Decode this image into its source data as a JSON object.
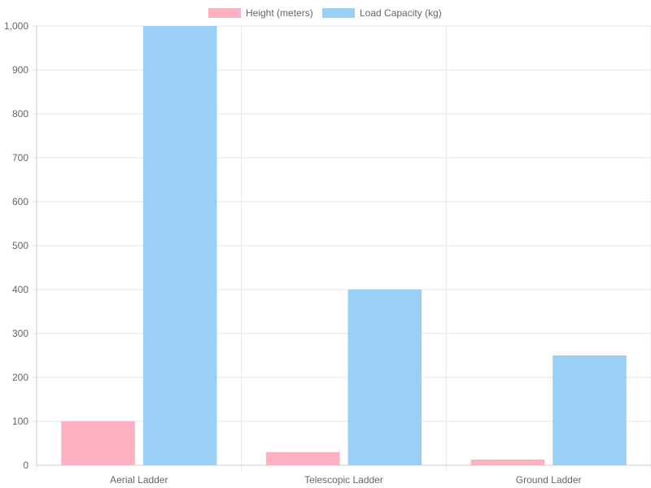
{
  "chart_data": {
    "type": "bar",
    "categories": [
      "Aerial Ladder",
      "Telescopic Ladder",
      "Ground Ladder"
    ],
    "series": [
      {
        "name": "Height (meters)",
        "values": [
          100,
          30,
          13
        ],
        "color": "#ffb1c1",
        "border": "#ff6384"
      },
      {
        "name": "Load Capacity (kg)",
        "values": [
          1000,
          400,
          250
        ],
        "color": "#9ad0f5",
        "border": "#36a2eb"
      }
    ],
    "ylim": [
      0,
      1000
    ],
    "yticks": [
      "0",
      "100",
      "200",
      "300",
      "400",
      "500",
      "600",
      "700",
      "800",
      "900",
      "1,000"
    ],
    "grid": true,
    "legend": "top"
  }
}
